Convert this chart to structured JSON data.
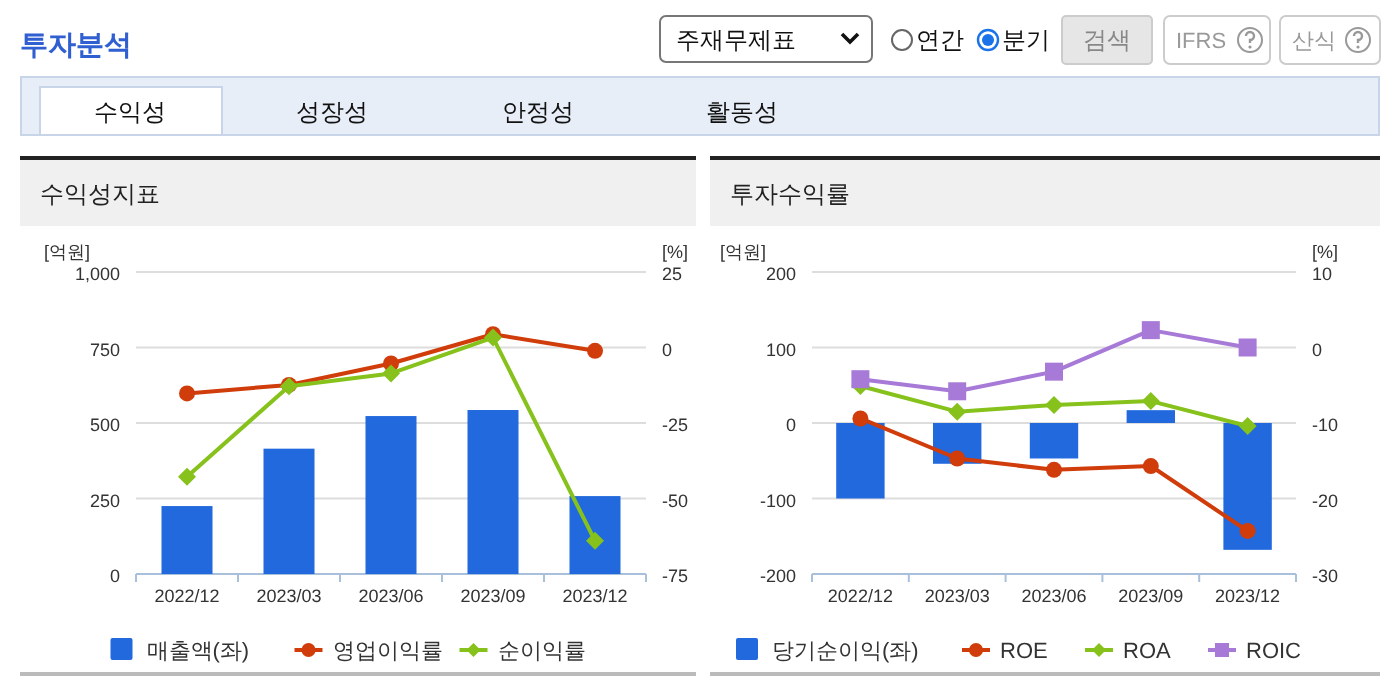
{
  "chart_data": [
    {
      "type": "other",
      "title": "투자분석",
      "annotations": [
        "주재무제표",
        "연간",
        "분기",
        "검색",
        "IFRS",
        "산식",
        "수익성",
        "성장성",
        "안정성",
        "활동성"
      ]
    },
    {
      "type": "bar",
      "title": "수익성지표",
      "ylabel": "[억원]",
      "y2label": "[%]",
      "categories": [
        "2022/12",
        "2023/03",
        "2023/06",
        "2023/09",
        "2023/12"
      ],
      "series": [
        {
          "name": "매출액(좌)",
          "color": "#2169dc",
          "values": [
            225,
            415,
            523,
            543,
            258
          ]
        },
        {
          "name": "영업이익률",
          "type": "line",
          "axis": "y2",
          "marker": "circle",
          "color": "#d03c0a",
          "values": [
            -15.2,
            -12.4,
            -5.3,
            4.4,
            -1.1
          ]
        },
        {
          "name": "순이익률",
          "type": "line",
          "axis": "y2",
          "marker": "diamond",
          "color": "#86c21b",
          "values": [
            -42.8,
            -12.8,
            -8.6,
            3.3,
            -64
          ]
        }
      ],
      "ylim": [
        0,
        1000
      ],
      "yticks": [
        0,
        250,
        500,
        750,
        {
          "value": 1000,
          "label": "1,000"
        }
      ],
      "y2lim": [
        -75,
        25
      ],
      "y2ticks": [
        -75,
        -50,
        -25,
        0,
        25
      ],
      "grid": "y",
      "legend": "bottom"
    },
    {
      "type": "bar",
      "title": "투자수익률",
      "ylabel": "[억원]",
      "y2label": "[%]",
      "categories": [
        "2022/12",
        "2023/03",
        "2023/06",
        "2023/09",
        "2023/12"
      ],
      "series": [
        {
          "name": "당기순이익(좌)",
          "color": "#2169dc",
          "values": [
            -100,
            -54,
            -47,
            17,
            -168
          ]
        },
        {
          "name": "ROE",
          "type": "line",
          "axis": "y2",
          "marker": "circle",
          "color": "#d03c0a",
          "values": [
            -9.4,
            -14.7,
            -16.2,
            -15.7,
            -24.3
          ]
        },
        {
          "name": "ROA",
          "type": "line",
          "axis": "y2",
          "marker": "diamond",
          "color": "#86c21b",
          "values": [
            -5.1,
            -8.5,
            -7.6,
            -7.1,
            -10.4
          ]
        },
        {
          "name": "ROIC",
          "type": "line",
          "axis": "y2",
          "marker": "square",
          "color": "#a77ad8",
          "values": [
            -4.2,
            -5.8,
            -3.2,
            2.3,
            0
          ]
        }
      ],
      "ylim": [
        -200,
        200
      ],
      "yticks": [
        -200,
        -100,
        0,
        100,
        200
      ],
      "y2lim": [
        -30,
        10
      ],
      "y2ticks": [
        -30,
        -20,
        -10,
        0,
        10
      ],
      "grid": "y",
      "legend": "bottom"
    }
  ]
}
